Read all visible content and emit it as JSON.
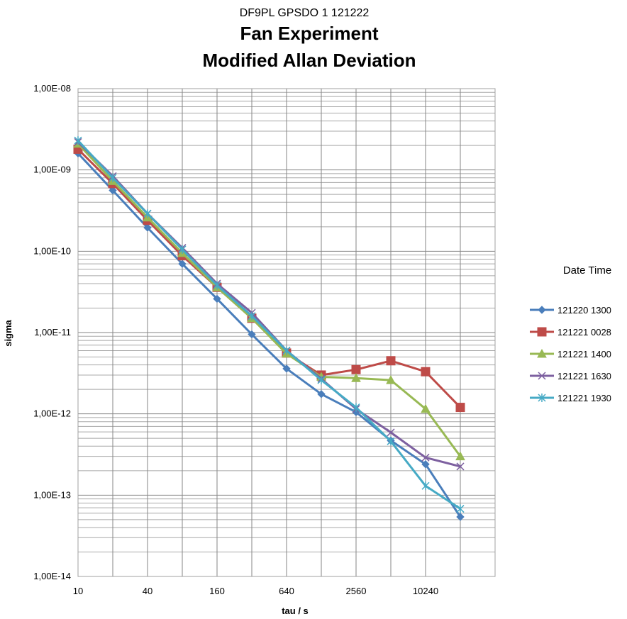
{
  "chart_data": {
    "type": "line",
    "subtitle": "DF9PL GPSDO 1 121222",
    "title_line1": "Fan Experiment",
    "title_line2": "Modified Allan Deviation",
    "xlabel": "tau / s",
    "ylabel": "sigma",
    "x_scale": "log2",
    "y_scale": "log10",
    "xlim": [
      10,
      40960
    ],
    "ylim": [
      1e-14,
      1e-08
    ],
    "x_ticks": [
      {
        "value": 10,
        "label": "10"
      },
      {
        "value": 40,
        "label": "40"
      },
      {
        "value": 160,
        "label": "160"
      },
      {
        "value": 640,
        "label": "640"
      },
      {
        "value": 2560,
        "label": "2560"
      },
      {
        "value": 10240,
        "label": "10240"
      }
    ],
    "y_ticks": [
      {
        "value": 1e-08,
        "label": "1,00E-08"
      },
      {
        "value": 1e-09,
        "label": "1,00E-09"
      },
      {
        "value": 1e-10,
        "label": "1,00E-10"
      },
      {
        "value": 1e-11,
        "label": "1,00E-11"
      },
      {
        "value": 1e-12,
        "label": "1,00E-12"
      },
      {
        "value": 1e-13,
        "label": "1,00E-13"
      },
      {
        "value": 1e-14,
        "label": "1,00E-14"
      }
    ],
    "legend_title": "Date Time",
    "legend_position": "right",
    "x": [
      10,
      20,
      40,
      80,
      160,
      320,
      640,
      1280,
      2560,
      5120,
      10240,
      20480
    ],
    "series": [
      {
        "name": "121220 1300",
        "color": "#4a7ebb",
        "marker": "diamond",
        "values": [
          1.6e-09,
          5.6e-10,
          1.95e-10,
          7e-11,
          2.6e-11,
          9.5e-12,
          3.6e-12,
          1.75e-12,
          1.05e-12,
          4.7e-13,
          2.4e-13,
          5.4e-14
        ]
      },
      {
        "name": "121221 0028",
        "color": "#be4b48",
        "marker": "square",
        "values": [
          1.8e-09,
          6.8e-10,
          2.4e-10,
          8.8e-11,
          3.6e-11,
          1.5e-11,
          5.6e-12,
          3e-12,
          3.5e-12,
          4.5e-12,
          3.3e-12,
          1.2e-12
        ]
      },
      {
        "name": "121221 1400",
        "color": "#98b954",
        "marker": "triangle",
        "values": [
          2.1e-09,
          7.3e-10,
          2.6e-10,
          9.5e-11,
          3.6e-11,
          1.5e-11,
          5.5e-12,
          2.85e-12,
          2.75e-12,
          2.6e-12,
          1.15e-12,
          3e-13
        ]
      },
      {
        "name": "121221 1630",
        "color": "#7d60a0",
        "marker": "x",
        "values": [
          2.2e-09,
          8.4e-10,
          2.9e-10,
          1.1e-10,
          4e-11,
          1.75e-11,
          6e-12,
          2.7e-12,
          1.15e-12,
          5.9e-13,
          2.9e-13,
          2.25e-13
        ]
      },
      {
        "name": "121221 1930",
        "color": "#46aac5",
        "marker": "star",
        "values": [
          2.3e-09,
          8e-10,
          2.9e-10,
          1.05e-10,
          3.8e-11,
          1.6e-11,
          6e-12,
          2.6e-12,
          1.2e-12,
          4.6e-13,
          1.3e-13,
          6.8e-14
        ]
      }
    ]
  }
}
